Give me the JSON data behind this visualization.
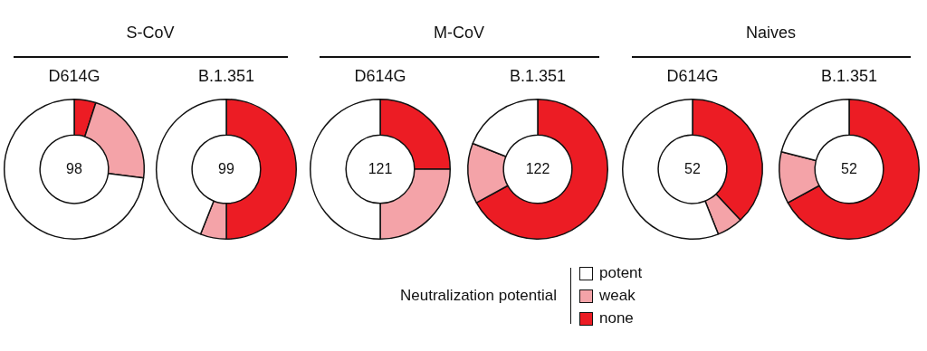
{
  "chart_data": [
    {
      "type": "donut",
      "title": "S-CoV",
      "subtitle": "D614G",
      "annotations": [
        "98"
      ],
      "categories": [
        null,
        null,
        null
      ],
      "values": [
        73,
        22,
        5
      ],
      "colors": [
        "#ffffff",
        "#f4a3a8",
        "#ec1c24"
      ],
      "legend": false
    },
    {
      "type": "donut",
      "subtitle": "B.1.351",
      "annotations": [
        "99"
      ],
      "categories": [
        null,
        null,
        null
      ],
      "values": [
        44,
        6,
        50
      ],
      "colors": [
        "#ffffff",
        "#f4a3a8",
        "#ec1c24"
      ],
      "legend": false
    },
    {
      "type": "donut",
      "title": "M-CoV",
      "subtitle": "D614G",
      "annotations": [
        "121"
      ],
      "categories": [
        null,
        null,
        null
      ],
      "values": [
        50,
        25,
        25
      ],
      "colors": [
        "#ffffff",
        "#f4a3a8",
        "#ec1c24"
      ],
      "legend": false
    },
    {
      "type": "donut",
      "subtitle": "B.1.351",
      "annotations": [
        "122"
      ],
      "categories": [
        null,
        null,
        null
      ],
      "values": [
        19,
        14,
        67
      ],
      "colors": [
        "#ffffff",
        "#f4a3a8",
        "#ec1c24"
      ],
      "legend": false
    },
    {
      "type": "donut",
      "title": "Naives",
      "subtitle": "D614G",
      "annotations": [
        "52"
      ],
      "categories": [
        null,
        null,
        null
      ],
      "values": [
        56,
        6,
        38
      ],
      "colors": [
        "#ffffff",
        "#f4a3a8",
        "#ec1c24"
      ],
      "legend": false
    },
    {
      "type": "donut",
      "subtitle": "B.1.351",
      "annotations": [
        "52"
      ],
      "categories": [
        "potent",
        "weak",
        "none"
      ],
      "values": [
        21,
        12,
        67
      ],
      "colors": [
        "#ffffff",
        "#f4a3a8",
        "#ec1c24"
      ],
      "legend": "bottom",
      "legend_title": "Neutralization potential"
    }
  ]
}
